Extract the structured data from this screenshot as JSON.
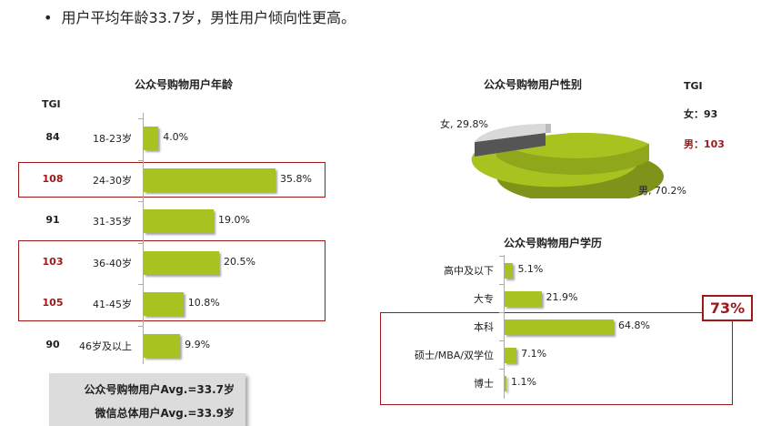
{
  "headline": {
    "bullet": "•",
    "text": "用户平均年龄33.7岁，男性用户倾向性更高。"
  },
  "age_chart": {
    "tgi_label": "TGI",
    "tgi": [
      "84",
      "108",
      "91",
      "103",
      "105",
      "90"
    ]
  },
  "gender_chart": {
    "tgi_label": "TGI",
    "tgi_female": "女：93",
    "tgi_male": "男：103",
    "female_label": "女, 29.8%",
    "male_label": "男, 70.2%"
  },
  "edu_chart": {
    "badge": "73%"
  },
  "avg_box": {
    "line1": "公众号购物用户Avg.=33.7岁",
    "line2": "微信总体用户Avg.=33.9岁"
  },
  "colors": {
    "bar": "#a8c31f",
    "highlight": "#a01919",
    "pie_male": "#a8c31f",
    "pie_female": "#d9d9d9"
  },
  "chart_data": [
    {
      "type": "bar",
      "orientation": "horizontal",
      "title": "公众号购物用户年龄",
      "categories": [
        "18-23岁",
        "24-30岁",
        "31-35岁",
        "36-40岁",
        "41-45岁",
        "46岁及以上"
      ],
      "values": [
        4.0,
        35.8,
        19.0,
        20.5,
        10.8,
        9.9
      ],
      "value_labels": [
        "4.0%",
        "35.8%",
        "19.0%",
        "20.5%",
        "10.8%",
        "9.9%"
      ],
      "unit": "%"
    },
    {
      "type": "pie",
      "title": "公众号购物用户性别",
      "categories": [
        "女",
        "男"
      ],
      "values": [
        29.8,
        70.2
      ],
      "unit": "%"
    },
    {
      "type": "bar",
      "orientation": "horizontal",
      "title": "公众号购物用户学历",
      "categories": [
        "高中及以下",
        "大专",
        "本科",
        "硕士/MBA/双学位",
        "博士"
      ],
      "values": [
        5.1,
        21.9,
        64.8,
        7.1,
        1.1
      ],
      "value_labels": [
        "5.1%",
        "21.9%",
        "64.8%",
        "7.1%",
        "1.1%"
      ],
      "unit": "%"
    }
  ]
}
